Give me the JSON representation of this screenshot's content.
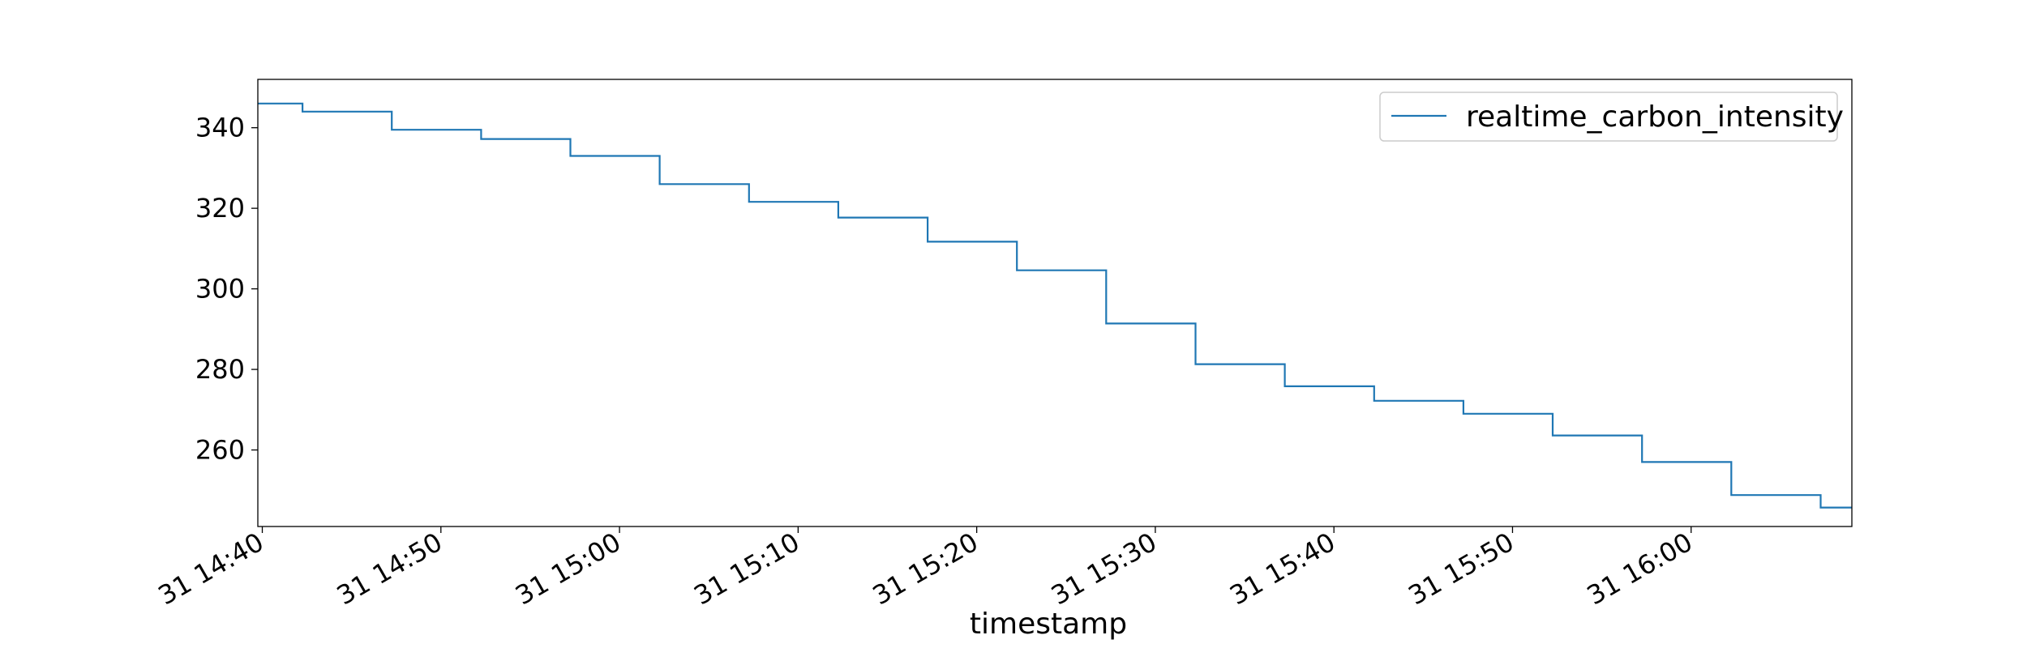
{
  "colors": {
    "series": "#1f77b4",
    "axis": "#000000",
    "legend_border": "#cccccc",
    "background": "#ffffff"
  },
  "chart_data": {
    "type": "line",
    "step": true,
    "xlabel": "timestamp",
    "ylabel": "",
    "xlim": [
      "31 14:39:45",
      "31 16:09:00"
    ],
    "ylim": [
      241,
      352
    ],
    "x_ticks": [
      {
        "value": "31 14:40:00",
        "label": "31 14:40"
      },
      {
        "value": "31 14:50:00",
        "label": "31 14:50"
      },
      {
        "value": "31 15:00:00",
        "label": "31 15:00"
      },
      {
        "value": "31 15:10:00",
        "label": "31 15:10"
      },
      {
        "value": "31 15:20:00",
        "label": "31 15:20"
      },
      {
        "value": "31 15:30:00",
        "label": "31 15:30"
      },
      {
        "value": "31 15:40:00",
        "label": "31 15:40"
      },
      {
        "value": "31 15:50:00",
        "label": "31 15:50"
      },
      {
        "value": "31 16:00:00",
        "label": "31 16:00"
      }
    ],
    "y_ticks": [
      260,
      280,
      300,
      320,
      340
    ],
    "legend": {
      "position": "upper right",
      "entries": [
        "realtime_carbon_intensity"
      ]
    },
    "series": [
      {
        "name": "realtime_carbon_intensity",
        "x": [
          "31 14:39:45",
          "31 14:42:15",
          "31 14:47:15",
          "31 14:52:15",
          "31 14:57:15",
          "31 15:02:15",
          "31 15:07:15",
          "31 15:12:15",
          "31 15:17:15",
          "31 15:22:15",
          "31 15:27:15",
          "31 15:32:15",
          "31 15:37:15",
          "31 15:42:15",
          "31 15:47:15",
          "31 15:52:15",
          "31 15:57:15",
          "31 16:02:15",
          "31 16:07:15",
          "31 16:09:00"
        ],
        "values": [
          346,
          344,
          339.5,
          337.2,
          333,
          326,
          321.6,
          317.7,
          311.7,
          304.6,
          291.4,
          281.3,
          275.8,
          272.2,
          269,
          263.6,
          257,
          248.8,
          245.7,
          245.7
        ]
      }
    ]
  }
}
